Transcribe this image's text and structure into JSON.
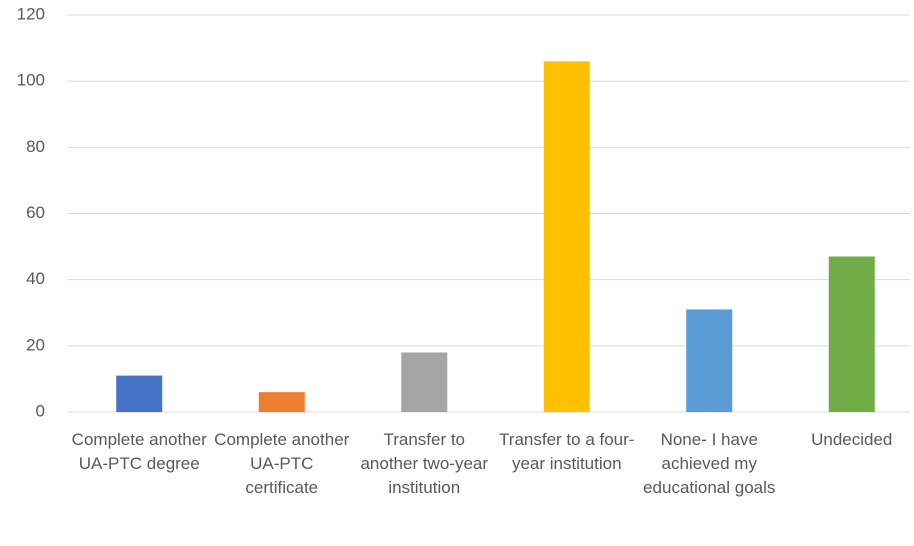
{
  "chart_data": {
    "type": "bar",
    "categories": [
      "Complete another UA-PTC degree",
      "Complete another UA-PTC certificate",
      "Transfer to another two-year institution",
      "Transfer to a four-year institution",
      "None- I have achieved my educational goals",
      "Undecided"
    ],
    "values": [
      11,
      6,
      18,
      106,
      31,
      47
    ],
    "colors": [
      "#4472c4",
      "#ed7d31",
      "#a5a5a5",
      "#ffc000",
      "#5b9bd5",
      "#70ad47"
    ],
    "ylim": [
      0,
      120
    ],
    "yticks": [
      0,
      20,
      40,
      60,
      80,
      100,
      120
    ],
    "grid": true
  }
}
